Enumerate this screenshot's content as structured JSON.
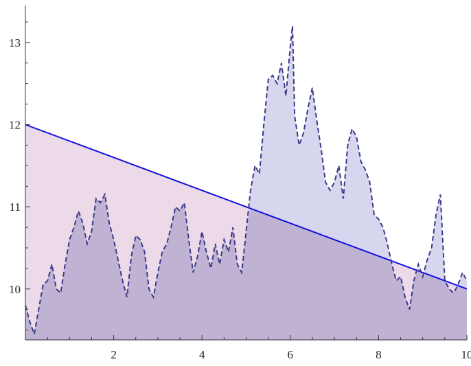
{
  "chart_data": {
    "type": "area",
    "title": "",
    "xlabel": "",
    "ylabel": "",
    "xlim": [
      0,
      10
    ],
    "ylim": [
      9.38,
      13.45
    ],
    "grid": false,
    "legend": "none",
    "x_ticks": [
      {
        "value": 2,
        "label": "2"
      },
      {
        "value": 4,
        "label": "4"
      },
      {
        "value": 6,
        "label": "6"
      },
      {
        "value": 8,
        "label": "8"
      },
      {
        "value": 10,
        "label": "10"
      }
    ],
    "y_ticks": [
      {
        "value": 10,
        "label": "10"
      },
      {
        "value": 11,
        "label": "11"
      },
      {
        "value": 12,
        "label": "12"
      },
      {
        "value": 13,
        "label": "13"
      }
    ],
    "series": [
      {
        "style": "solid",
        "color": "#1010e0",
        "fill_color": "#e6cde0",
        "x": [
          0,
          10
        ],
        "y": [
          12.0,
          10.0
        ]
      },
      {
        "style": "dashed",
        "color": "#3a3a8a",
        "fill_color": "#c8c8ea",
        "x": [
          0,
          0.1,
          0.2,
          0.3,
          0.4,
          0.5,
          0.6,
          0.7,
          0.8,
          0.9,
          1.0,
          1.1,
          1.2,
          1.3,
          1.4,
          1.5,
          1.6,
          1.7,
          1.8,
          1.9,
          2.0,
          2.1,
          2.2,
          2.3,
          2.4,
          2.5,
          2.6,
          2.7,
          2.8,
          2.9,
          3.0,
          3.1,
          3.2,
          3.3,
          3.4,
          3.5,
          3.6,
          3.7,
          3.8,
          3.9,
          4.0,
          4.1,
          4.2,
          4.3,
          4.4,
          4.5,
          4.6,
          4.7,
          4.8,
          4.9,
          5.0,
          5.1,
          5.2,
          5.3,
          5.4,
          5.5,
          5.6,
          5.7,
          5.8,
          5.9,
          6.0,
          6.05,
          6.1,
          6.2,
          6.3,
          6.4,
          6.5,
          6.6,
          6.7,
          6.8,
          6.9,
          7.0,
          7.1,
          7.2,
          7.3,
          7.4,
          7.5,
          7.6,
          7.7,
          7.8,
          7.9,
          8.0,
          8.1,
          8.2,
          8.3,
          8.4,
          8.5,
          8.6,
          8.7,
          8.8,
          8.9,
          9.0,
          9.1,
          9.2,
          9.3,
          9.4,
          9.5,
          9.6,
          9.7,
          9.8,
          9.9,
          10.0
        ],
        "y": [
          9.8,
          9.6,
          9.45,
          9.75,
          10.05,
          10.1,
          10.3,
          10.0,
          9.95,
          10.3,
          10.6,
          10.75,
          10.95,
          10.8,
          10.55,
          10.7,
          11.1,
          11.05,
          11.15,
          10.8,
          10.6,
          10.35,
          10.1,
          9.9,
          10.4,
          10.65,
          10.6,
          10.45,
          10.0,
          9.9,
          10.2,
          10.45,
          10.55,
          10.75,
          11.0,
          10.95,
          11.05,
          10.6,
          10.2,
          10.4,
          10.7,
          10.45,
          10.25,
          10.55,
          10.3,
          10.6,
          10.45,
          10.75,
          10.3,
          10.2,
          10.7,
          11.2,
          11.5,
          11.4,
          12.0,
          12.55,
          12.6,
          12.5,
          12.75,
          12.35,
          12.95,
          13.2,
          12.1,
          11.75,
          11.9,
          12.2,
          12.45,
          12.05,
          11.7,
          11.3,
          11.2,
          11.3,
          11.5,
          11.1,
          11.75,
          11.95,
          11.85,
          11.55,
          11.45,
          11.3,
          10.9,
          10.85,
          10.75,
          10.55,
          10.3,
          10.1,
          10.15,
          9.9,
          9.75,
          10.1,
          10.3,
          10.15,
          10.35,
          10.5,
          10.9,
          11.15,
          10.1,
          10.0,
          9.95,
          10.05,
          10.2,
          10.1
        ]
      }
    ]
  }
}
